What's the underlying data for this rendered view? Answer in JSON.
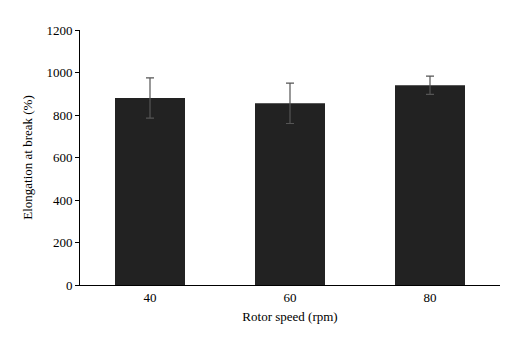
{
  "chart_data": {
    "type": "bar",
    "x_label": "Rotor speed (rpm)",
    "y_label": "Elongation at break (%)",
    "categories": [
      "40",
      "60",
      "80"
    ],
    "values": [
      880,
      855,
      940
    ],
    "error": [
      95,
      95,
      43
    ],
    "color": "#222222",
    "ylim": [
      0,
      1200
    ],
    "yticks": [
      0,
      200,
      400,
      600,
      800,
      1000,
      1200
    ],
    "grid": false
  }
}
